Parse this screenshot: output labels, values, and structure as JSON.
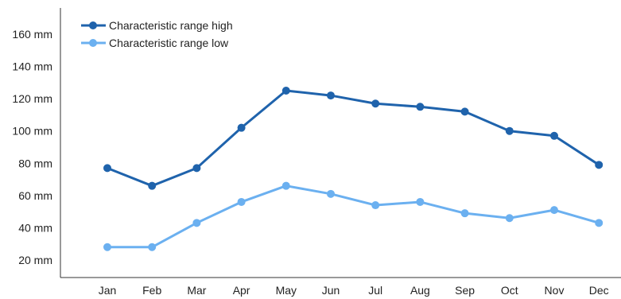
{
  "chart_data": {
    "type": "line",
    "title": "",
    "xlabel": "",
    "ylabel": "",
    "categories": [
      "Jan",
      "Feb",
      "Mar",
      "Apr",
      "May",
      "Jun",
      "Jul",
      "Aug",
      "Sep",
      "Oct",
      "Nov",
      "Dec"
    ],
    "y_ticks": [
      20,
      40,
      60,
      80,
      100,
      120,
      140,
      160
    ],
    "y_unit": "mm",
    "ylim": [
      12,
      178
    ],
    "grid": false,
    "legend_position": "top-left",
    "series": [
      {
        "name": "Characteristic range high",
        "color": "#1f63ac",
        "values": [
          77,
          66,
          77,
          102,
          125,
          122,
          117,
          115,
          112,
          100,
          97,
          79
        ]
      },
      {
        "name": "Characteristic range low",
        "color": "#6bb0f0",
        "values": [
          28,
          28,
          43,
          56,
          66,
          61,
          54,
          56,
          49,
          46,
          51,
          43
        ]
      }
    ]
  }
}
